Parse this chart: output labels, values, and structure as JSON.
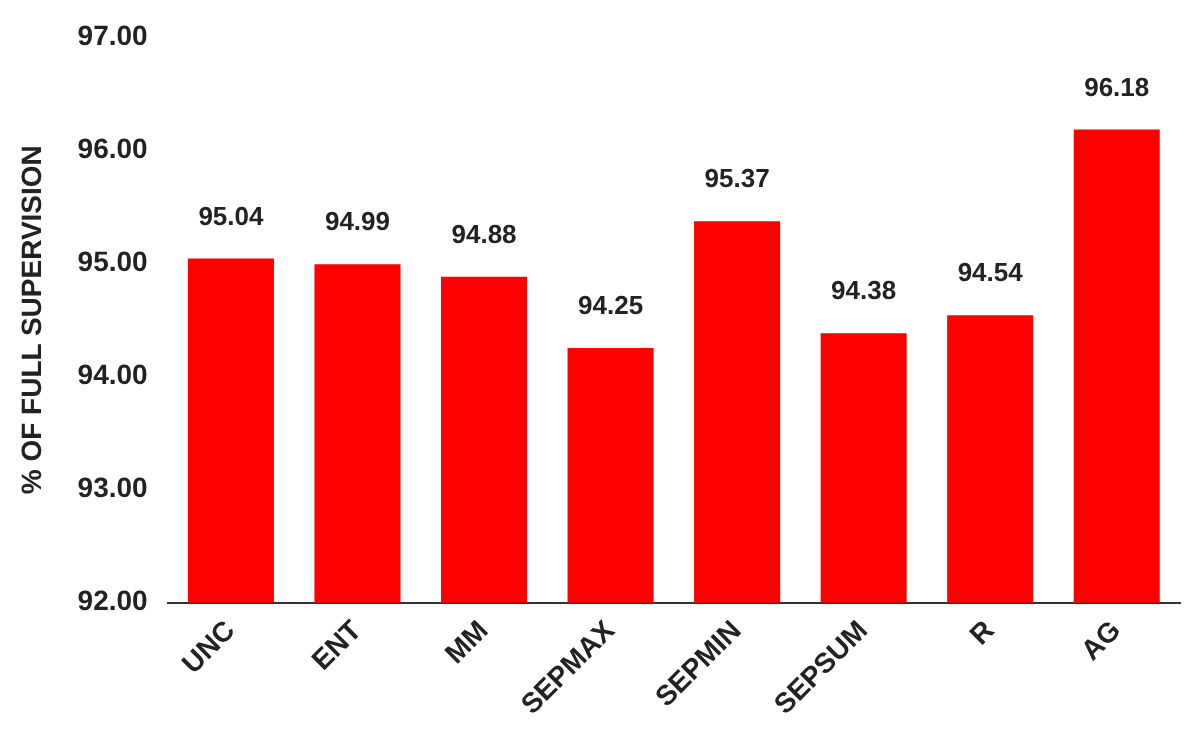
{
  "chart_data": {
    "type": "bar",
    "ylabel": "% OF FULL SUPERVISION",
    "categories": [
      "UNC",
      "ENT",
      "MM",
      "SEPMAX",
      "SEPMIN",
      "SEPSUM",
      "R",
      "AG"
    ],
    "values": [
      95.04,
      94.99,
      94.88,
      94.25,
      95.37,
      94.38,
      94.54,
      96.18
    ],
    "color": "#ff0000",
    "ylim": [
      92,
      97
    ],
    "yticks": [
      {
        "value": 92,
        "label": "92.00"
      },
      {
        "value": 93,
        "label": "93.00"
      },
      {
        "value": 94,
        "label": "94.00"
      },
      {
        "value": 95,
        "label": "95.00"
      },
      {
        "value": 96,
        "label": "96.00"
      },
      {
        "value": 97,
        "label": "97.00"
      }
    ],
    "data_labels": true
  }
}
